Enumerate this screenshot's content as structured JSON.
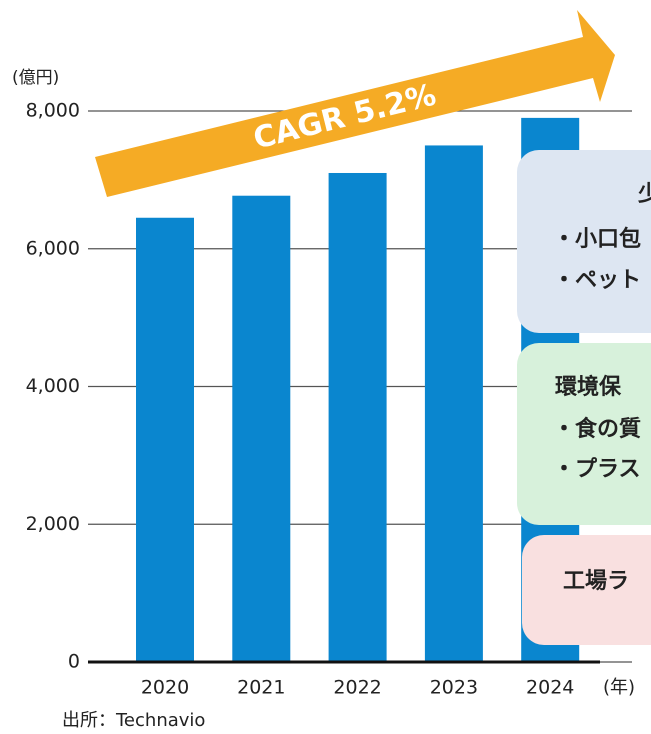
{
  "chart_data": {
    "type": "bar",
    "unit_label": "(億円)",
    "x_unit_label": "(年)",
    "source": "出所：Technavio",
    "annotation": "CAGR 5.2%",
    "categories": [
      "2020",
      "2021",
      "2022",
      "2023",
      "2024"
    ],
    "values": [
      6450,
      6770,
      7100,
      7500,
      7900
    ],
    "color": "#0a86cf",
    "ylim": [
      0,
      8000
    ],
    "yticks": [
      0,
      {
        "value": 2000,
        "label": "2,000"
      },
      {
        "value": 4000,
        "label": "4,000"
      },
      {
        "value": 6000,
        "label": "6,000"
      },
      {
        "value": 8000,
        "label": "8,000"
      }
    ],
    "grid": true
  },
  "callouts": [
    {
      "lines": [
        "少",
        "・小口包",
        "・ペット"
      ]
    },
    {
      "lines": [
        "環境保",
        "・食の質",
        "・プラス"
      ]
    },
    {
      "lines": [
        "工場ラ"
      ]
    }
  ]
}
